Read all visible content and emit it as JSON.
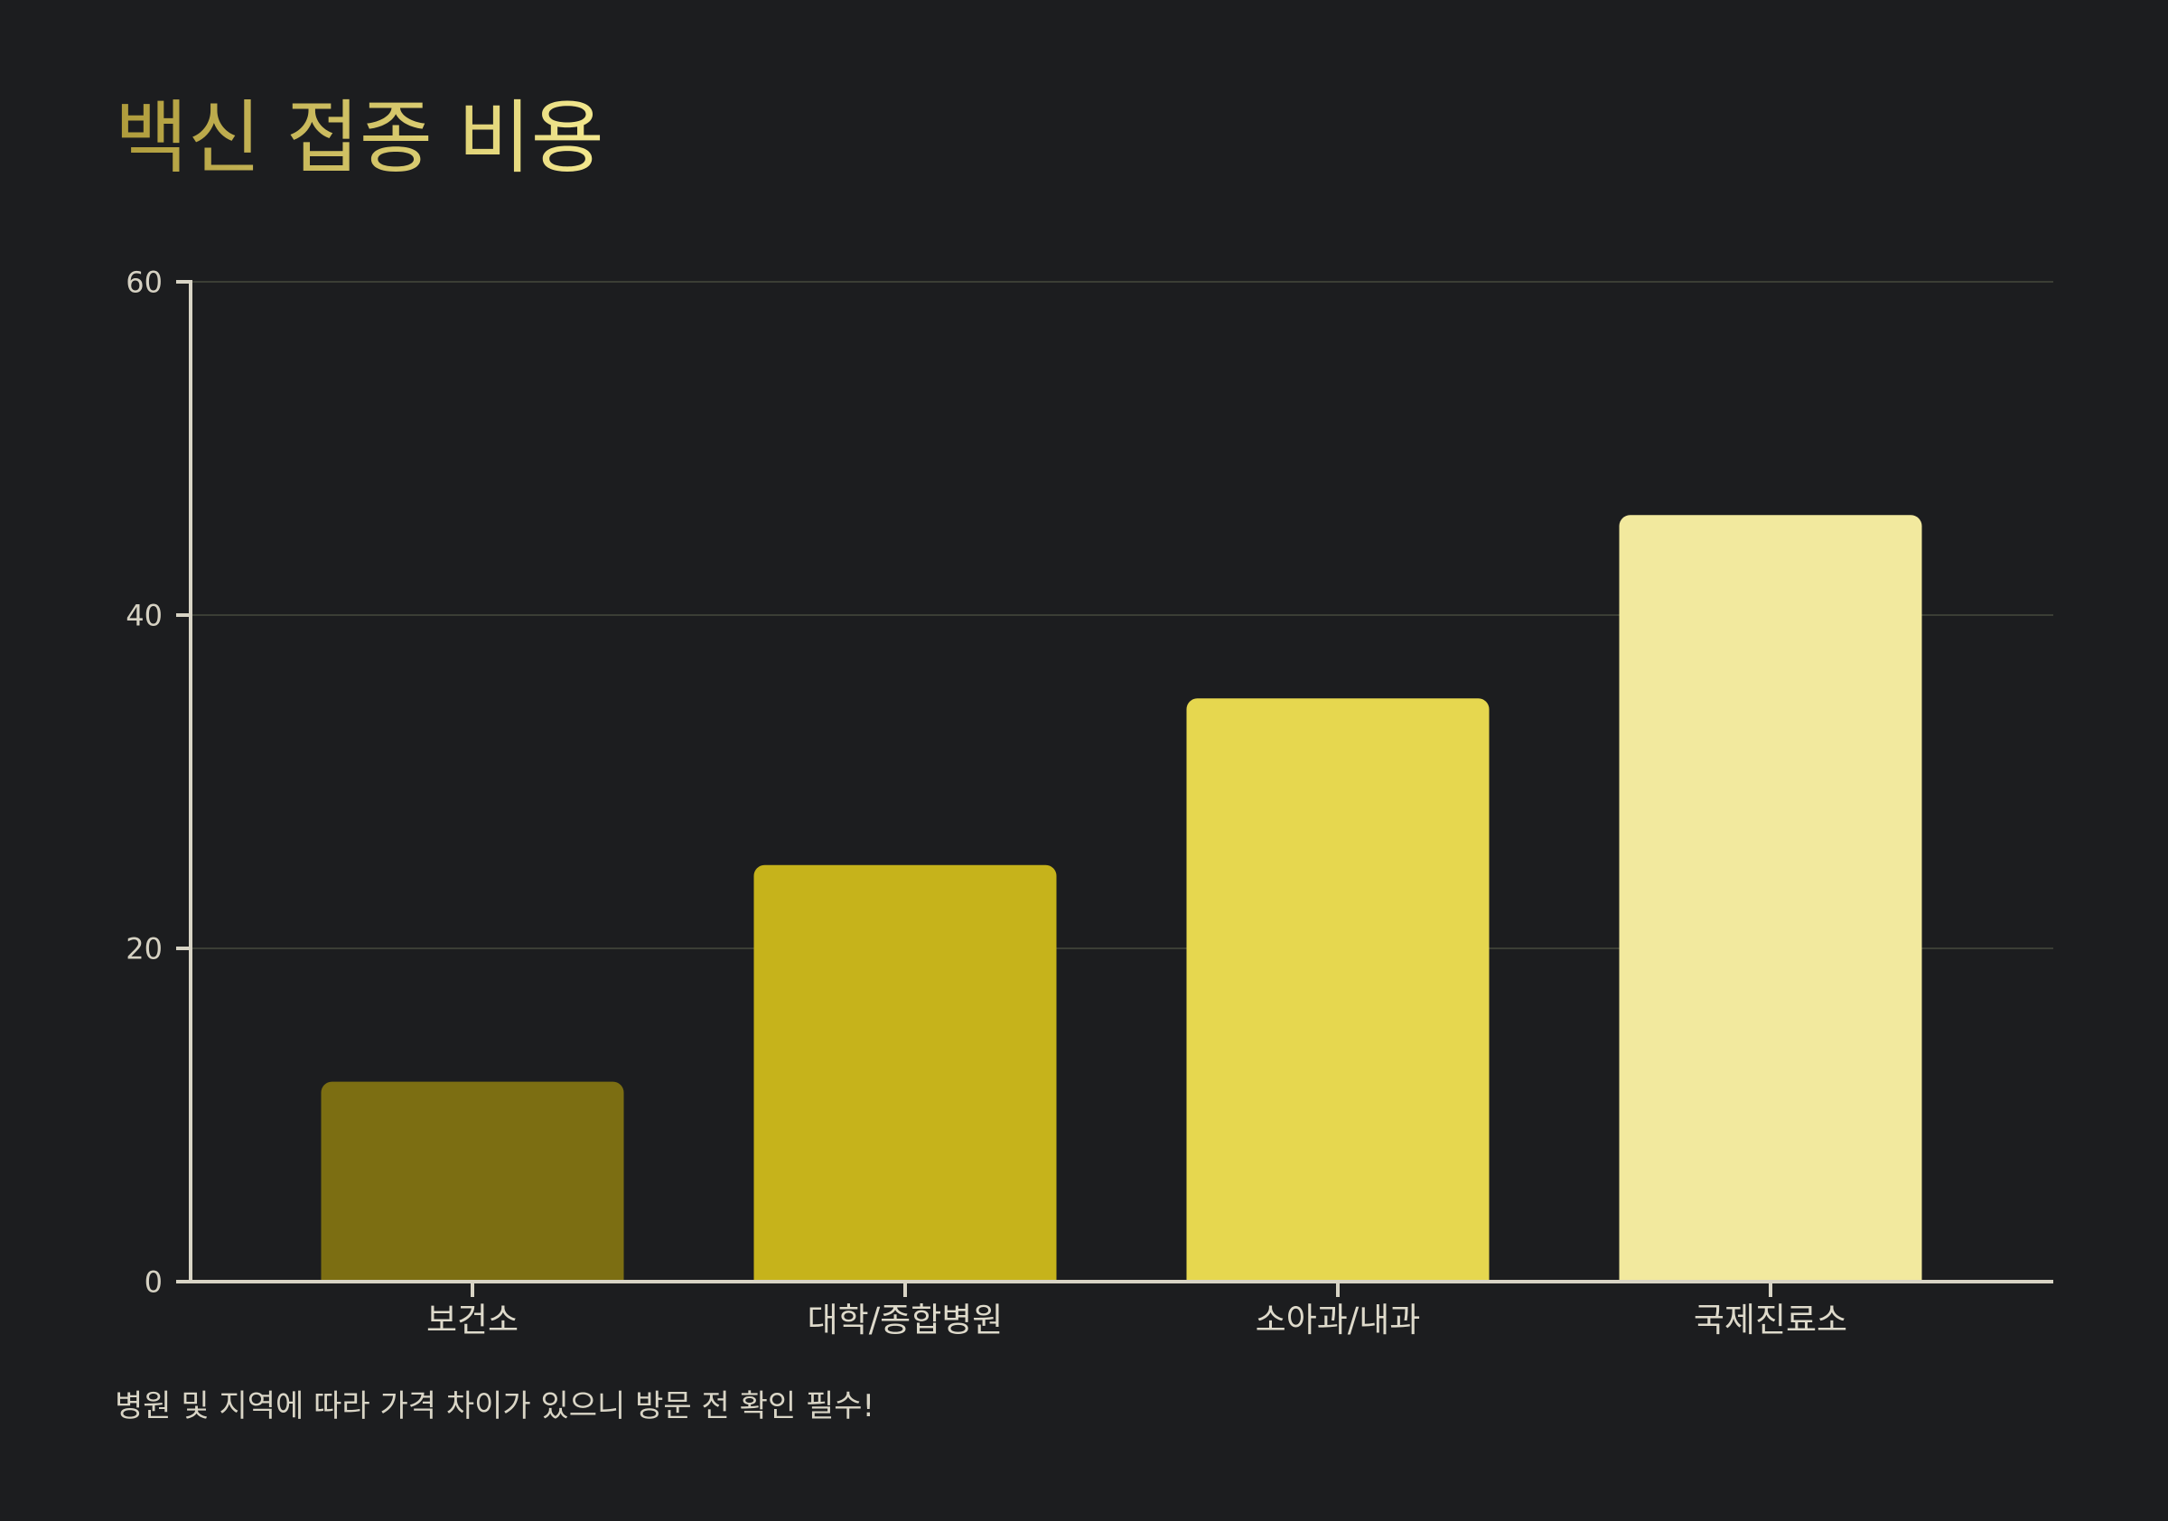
{
  "colors": {
    "background": "#1c1d1f",
    "title_gradient": [
      "#ae9b3b",
      "#f4e990"
    ],
    "axis": "#d8d4c5",
    "grid": "#3b3e35"
  },
  "chart_data": {
    "type": "bar",
    "title": "백신 접종 비용",
    "categories": [
      "보건소",
      "대학/종합병원",
      "소아과/내과",
      "국제진료소"
    ],
    "values": [
      12,
      25,
      35,
      46
    ],
    "bar_colors": [
      "#7c6e12",
      "#c6b31b",
      "#e6d74f",
      "#f2e99e"
    ],
    "ylim": [
      0,
      60
    ],
    "yticks": [
      0,
      20,
      40,
      60
    ],
    "grid": true,
    "legend": false,
    "note": "병원 및 지역에 따라 가격 차이가 있으니 방문 전 확인 필수!"
  }
}
